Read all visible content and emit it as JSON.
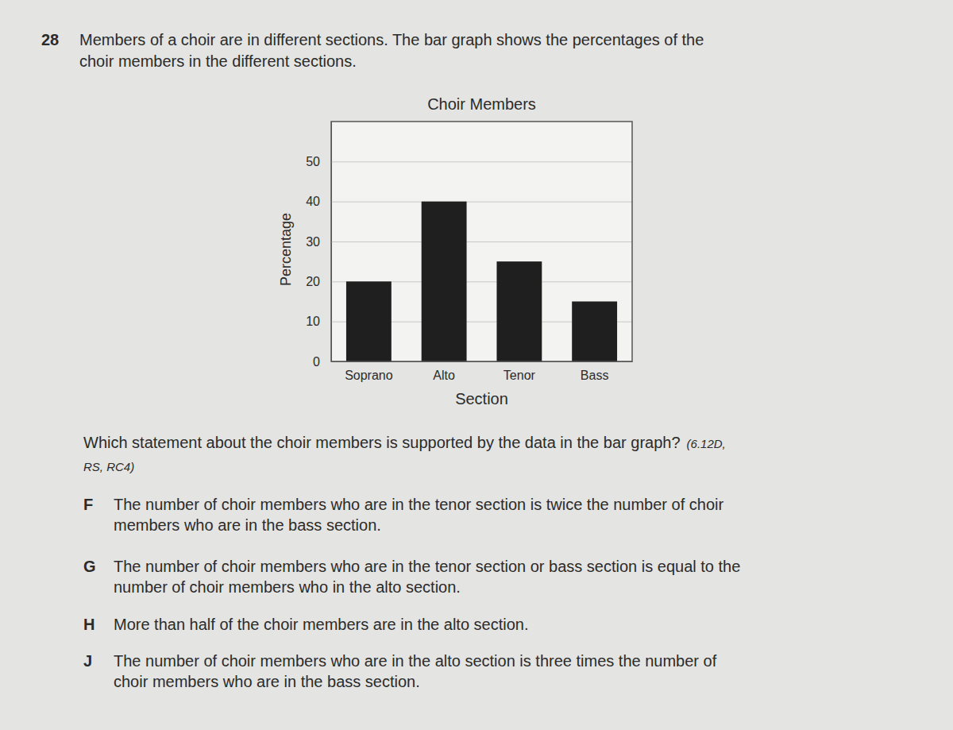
{
  "question": {
    "number": "28",
    "lines": [
      "Members of a choir are in different sections. The bar graph shows the percentages of the",
      "choir members in the different sections."
    ]
  },
  "chart_data": {
    "type": "bar",
    "title": "Choir Members",
    "x_label": "Section",
    "y_label": "Percentage",
    "categories": [
      "Soprano",
      "Alto",
      "Tenor",
      "Bass"
    ],
    "values": [
      20,
      40,
      25,
      15
    ],
    "color": "#1f1f1f",
    "ylim": [
      0,
      60
    ],
    "yticks": [
      0,
      10,
      20,
      30,
      40,
      50
    ],
    "grid": true
  },
  "prompt": {
    "text": "Which statement about the choir members is supported by the data in the bar graph?",
    "standards": [
      "(6.12D,",
      "RS, RC4)"
    ]
  },
  "choices": [
    {
      "letter": "F",
      "lines": [
        "The number of choir members who are in the tenor section is twice the number of choir",
        "members who are in the bass section."
      ]
    },
    {
      "letter": "G",
      "lines": [
        "The number of choir members who are in the tenor section or bass section is equal to the",
        "number of choir members who in the alto section."
      ]
    },
    {
      "letter": "H",
      "lines": [
        "More than half of the choir members are in the alto section."
      ]
    },
    {
      "letter": "J",
      "lines": [
        "The number of choir members who are in the alto section is three times the number of",
        "choir members who are in the bass section."
      ]
    }
  ]
}
